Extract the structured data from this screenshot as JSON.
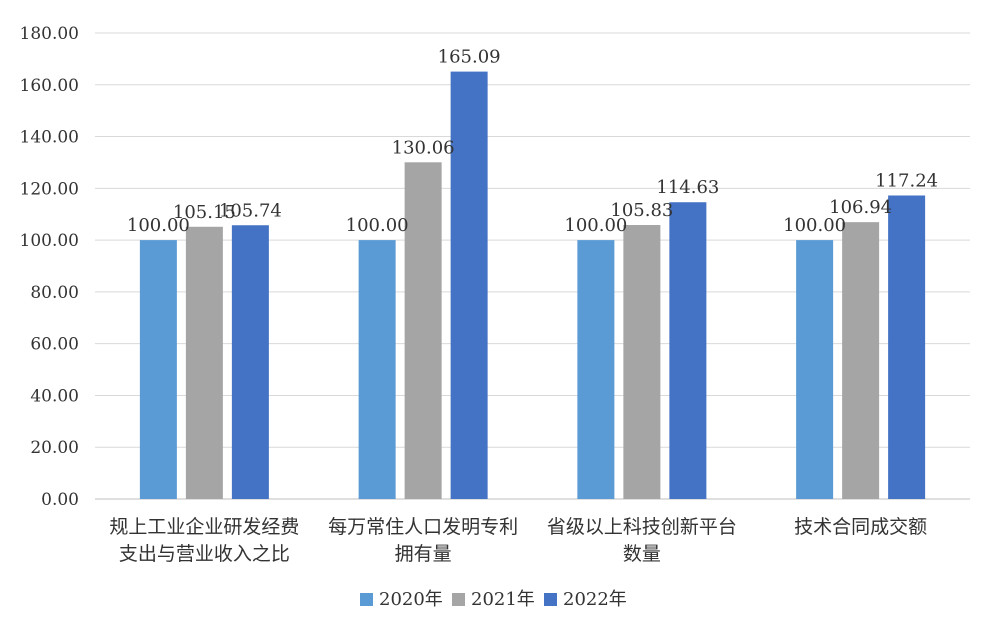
{
  "chart_data": {
    "type": "bar",
    "categories": [
      [
        "规上工业企业研发经费",
        "支出与营业收入之比"
      ],
      [
        "每万常住人口发明专利",
        "拥有量"
      ],
      [
        "省级以上科技创新平台",
        "数量"
      ],
      [
        "技术合同成交额"
      ]
    ],
    "series": [
      {
        "name": "2020年",
        "color": "#5B9BD5",
        "values": [
          100.0,
          100.0,
          100.0,
          100.0
        ],
        "labels": [
          "100.00",
          "100.00",
          "100.00",
          "100.00"
        ]
      },
      {
        "name": "2021年",
        "color": "#A5A5A5",
        "values": [
          105.15,
          130.06,
          105.83,
          106.94
        ],
        "labels": [
          "105.15",
          "130.06",
          "105.83",
          "106.94"
        ]
      },
      {
        "name": "2022年",
        "color": "#4472C4",
        "values": [
          105.74,
          165.09,
          114.63,
          117.24
        ],
        "labels": [
          "105.74",
          "165.09",
          "114.63",
          "117.24"
        ]
      }
    ],
    "y_ticks": [
      "0.00",
      "20.00",
      "40.00",
      "60.00",
      "80.00",
      "100.00",
      "120.00",
      "140.00",
      "160.00",
      "180.00"
    ],
    "ylim": [
      0,
      180
    ],
    "grid": true,
    "legend_position": "bottom",
    "title": "",
    "xlabel": "",
    "ylabel": ""
  }
}
